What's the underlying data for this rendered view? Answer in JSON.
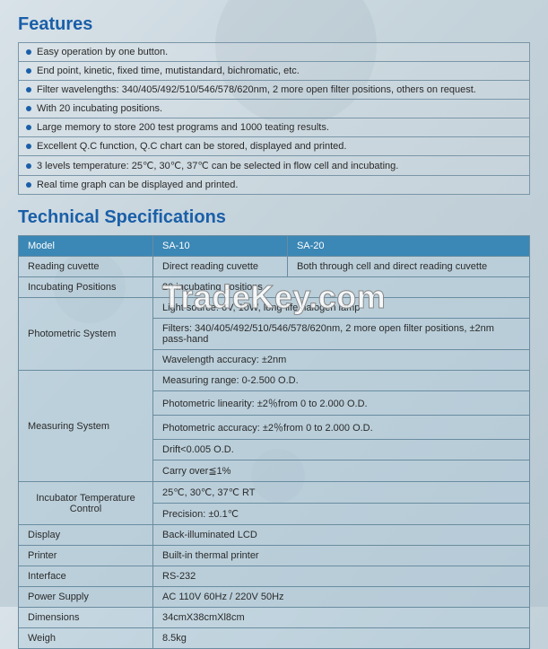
{
  "colors": {
    "heading": "#1a5fa8",
    "bullet": "#1a5fa8",
    "header_row_bg": "#3b87b5",
    "header_row_text": "#ffffff"
  },
  "features": {
    "title": "Features",
    "items": [
      "Easy operation by one button.",
      "End point, kinetic, fixed time, mutistandard, bichromatic, etc.",
      "Filter wavelengths: 340/405/492/510/546/578/620nm, 2 more open filter positions, others on request.",
      "With 20 incubating positions.",
      "Large memory to store 200 test programs and 1000 teating results.",
      "Excellent Q.C function, Q.C chart can be stored, displayed and printed.",
      "3 levels temperature: 25℃, 30℃, 37℃ can be selected in flow cell and incubating.",
      "Real time graph can be displayed and printed."
    ]
  },
  "specs": {
    "title": "Technical Specifications",
    "header": {
      "c0": "Model",
      "c1": "SA-10",
      "c2": "SA-20"
    },
    "reading_cuvette": {
      "label": "Reading cuvette",
      "v1": "Direct reading cuvette",
      "v2": "Both through cell and direct reading cuvette"
    },
    "incubating_positions": {
      "label": "Incubating Positions",
      "value": "20 incubating positions"
    },
    "photometric": {
      "label": "Photometric System",
      "r1": "Light source: 6V, 10W, long-life halogen lamp",
      "r2": "Filters: 340/405/492/510/546/578/620nm, 2 more open filter positions, ±2nm pass-hand",
      "r3": "Wavelength accuracy: ±2nm"
    },
    "measuring": {
      "label": "Measuring System",
      "r1": "Measuring range: 0-2.500 O.D.",
      "r2": "Photometric linearity: ±2％from 0 to 2.000 O.D.",
      "r3": "Photometric accuracy: ±2％from 0 to 2.000 O.D.",
      "r4": "Drift<0.005 O.D.",
      "r5": "Carry over≦1%"
    },
    "incubator": {
      "label": "Incubator Temperature Control",
      "r1": "25℃, 30℃, 37℃ RT",
      "r2": "Precision: ±0.1℃"
    },
    "display": {
      "label": "Display",
      "value": "Back-illuminated LCD"
    },
    "printer": {
      "label": "Printer",
      "value": "Built-in thermal printer"
    },
    "interface": {
      "label": "Interface",
      "value": "RS-232"
    },
    "power": {
      "label": "Power Supply",
      "value": "AC 110V 60Hz / 220V 50Hz"
    },
    "dimensions": {
      "label": "Dimensions",
      "value": "34cmX38cmXl8cm"
    },
    "weigh": {
      "label": "Weigh",
      "value": "8.5kg"
    }
  },
  "watermark": "TradeKey.com"
}
